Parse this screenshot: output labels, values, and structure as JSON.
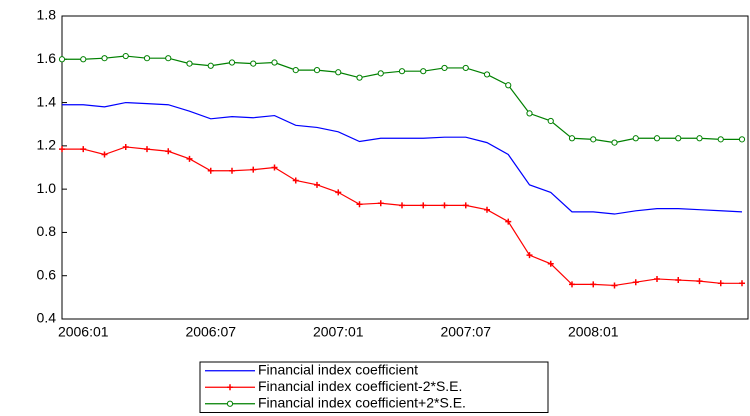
{
  "chart_data": {
    "type": "line",
    "categories": [
      null,
      "2006:01",
      null,
      null,
      null,
      null,
      null,
      "2006:07",
      null,
      null,
      null,
      null,
      null,
      "2007:01",
      null,
      null,
      null,
      null,
      null,
      "2007:07",
      null,
      null,
      null,
      null,
      null,
      "2008:01",
      null,
      null,
      null,
      null,
      null,
      null,
      null
    ],
    "series": [
      {
        "name": "Financial index coefficient",
        "color": "#0000ff",
        "marker": "none",
        "values": [
          1.39,
          1.39,
          1.38,
          1.4,
          1.395,
          1.39,
          1.36,
          1.325,
          1.335,
          1.33,
          1.34,
          1.295,
          1.285,
          1.265,
          1.22,
          1.235,
          1.235,
          1.235,
          1.24,
          1.24,
          1.215,
          1.16,
          1.02,
          0.985,
          0.895,
          0.895,
          0.885,
          0.9,
          0.91,
          0.91,
          0.905,
          0.9,
          0.895
        ]
      },
      {
        "name": "Financial index coefficient-2*S.E.",
        "color": "#ff0000",
        "marker": "plus",
        "values": [
          1.185,
          1.185,
          1.16,
          1.195,
          1.185,
          1.175,
          1.14,
          1.085,
          1.085,
          1.09,
          1.1,
          1.04,
          1.02,
          0.985,
          0.93,
          0.935,
          0.925,
          0.925,
          0.925,
          0.925,
          0.905,
          0.85,
          0.695,
          0.655,
          0.56,
          0.56,
          0.555,
          0.57,
          0.585,
          0.58,
          0.575,
          0.565,
          0.565
        ]
      },
      {
        "name": "Financial index coefficient+2*S.E.",
        "color": "#008000",
        "marker": "circle",
        "values": [
          1.6,
          1.6,
          1.605,
          1.615,
          1.605,
          1.605,
          1.58,
          1.57,
          1.585,
          1.58,
          1.585,
          1.55,
          1.55,
          1.54,
          1.515,
          1.535,
          1.545,
          1.545,
          1.56,
          1.56,
          1.53,
          1.48,
          1.35,
          1.315,
          1.235,
          1.23,
          1.215,
          1.235,
          1.235,
          1.235,
          1.235,
          1.23,
          1.23
        ]
      }
    ],
    "ylim": [
      0.4,
      1.8
    ],
    "yticks": [
      0.4,
      0.6,
      0.8,
      {
        "value": 1,
        "label": "1.0"
      },
      1.2,
      1.4,
      1.6,
      1.8
    ],
    "grid": false,
    "legend": "bottom"
  }
}
